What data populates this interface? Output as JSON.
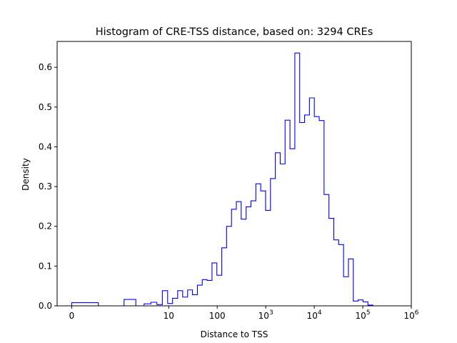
{
  "chart_data": {
    "type": "histogram",
    "title": "Histogram of CRE-TSS distance, based on: 3294 CREs",
    "xlabel": "Distance to TSS",
    "ylabel": "Density",
    "x_scale": "symlog",
    "xlim": [
      -0.3,
      1000000
    ],
    "ylim": [
      0,
      0.665
    ],
    "line_color": "#0000ff",
    "grid": false,
    "x_ticks": [
      {
        "value": 0,
        "base": "0",
        "exp": ""
      },
      {
        "value": 10,
        "base": "10",
        "exp": ""
      },
      {
        "value": 100,
        "base": "100",
        "exp": ""
      },
      {
        "value": 1000,
        "base": "10",
        "exp": "3"
      },
      {
        "value": 10000,
        "base": "10",
        "exp": "4"
      },
      {
        "value": 100000,
        "base": "10",
        "exp": "5"
      },
      {
        "value": 1000000,
        "base": "10",
        "exp": "6"
      }
    ],
    "y_ticks": [
      "0.0",
      "0.1",
      "0.2",
      "0.3",
      "0.4",
      "0.5",
      "0.6"
    ],
    "y_tick_values": [
      0.0,
      0.1,
      0.2,
      0.3,
      0.4,
      0.5,
      0.6
    ],
    "series": [
      {
        "bin_edges": [
          0,
          0.55,
          1.2,
          2.1,
          3.1,
          4.3,
          5.7,
          7.4,
          9.5,
          12.0,
          15.3,
          19.4,
          24.5,
          30.9,
          39.0,
          49.1,
          61.9,
          78.0,
          98.3,
          124,
          156,
          197,
          248,
          312,
          394,
          496,
          625,
          788,
          993,
          1251,
          1577,
          1987,
          2504,
          3156,
          3977,
          5011,
          6315,
          7958,
          10028,
          12637,
          15925,
          20068,
          25289,
          31868,
          40159,
          50607,
          63773,
          80364,
          101271,
          127617,
          160818,
          202656,
          255378,
          321816,
          405535
        ],
        "densities": [
          0.008,
          0.0,
          0.016,
          0.0,
          0.005,
          0.009,
          0.003,
          0.038,
          0.006,
          0.019,
          0.038,
          0.022,
          0.04,
          0.028,
          0.052,
          0.066,
          0.064,
          0.108,
          0.077,
          0.146,
          0.2,
          0.243,
          0.262,
          0.218,
          0.249,
          0.264,
          0.307,
          0.289,
          0.24,
          0.32,
          0.385,
          0.357,
          0.467,
          0.395,
          0.636,
          0.461,
          0.48,
          0.523,
          0.476,
          0.466,
          0.28,
          0.22,
          0.166,
          0.154,
          0.073,
          0.118,
          0.012,
          0.015,
          0.01,
          0.002,
          0.0,
          0.0,
          0.0,
          0.0
        ]
      }
    ]
  }
}
